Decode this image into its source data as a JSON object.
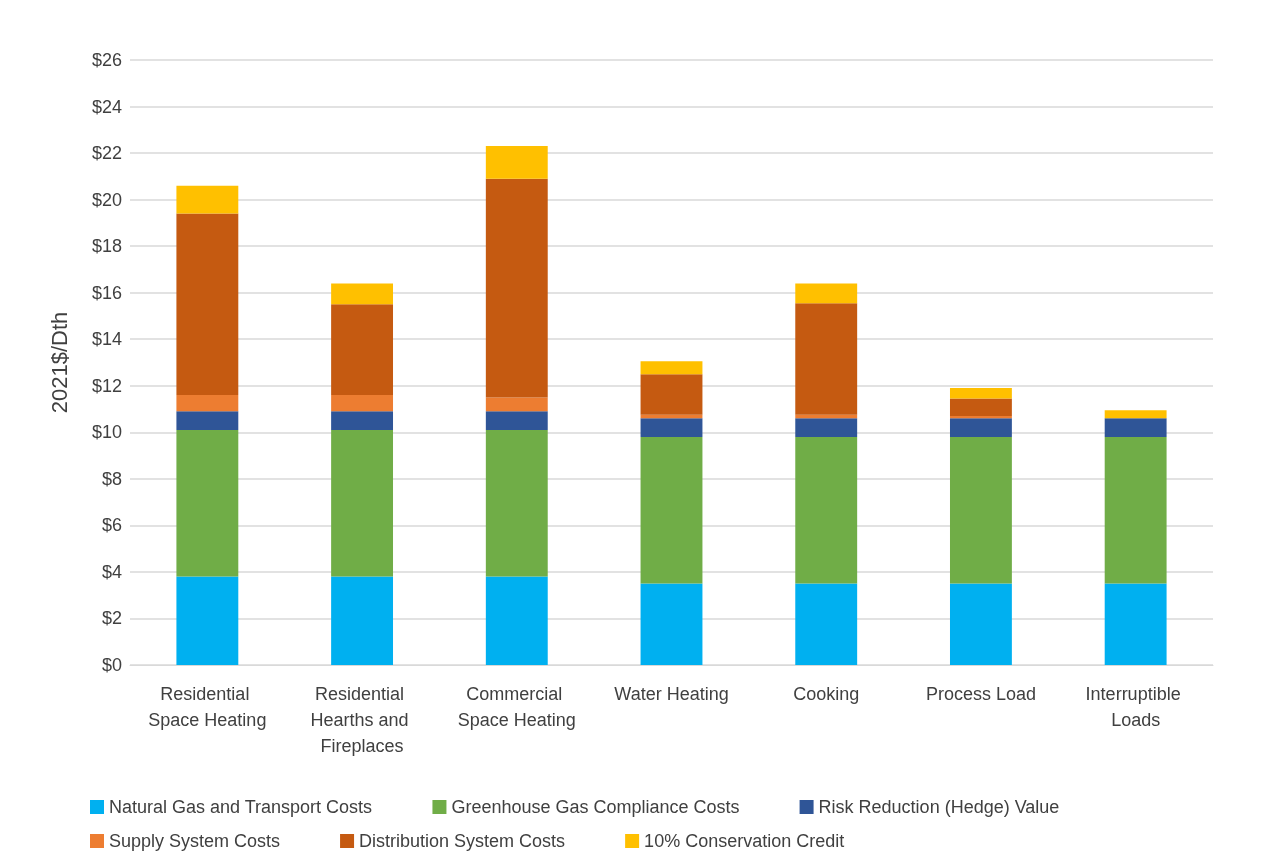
{
  "chart_data": {
    "type": "bar",
    "stacked": true,
    "ylabel": "2021$/Dth",
    "categories": [
      "Residential Space Heating",
      "Residential Hearths and Fireplaces",
      "Commercial Space Heating",
      "Water Heating",
      "Cooking",
      "Process Load",
      "Interruptible Loads"
    ],
    "series": [
      {
        "name": "Natural Gas and Transport Costs",
        "color": "#00b0f0",
        "values": [
          3.8,
          3.8,
          3.8,
          3.5,
          3.5,
          3.5,
          3.5
        ]
      },
      {
        "name": "Greenhouse Gas Compliance Costs",
        "color": "#70ad47",
        "values": [
          6.3,
          6.3,
          6.3,
          6.3,
          6.3,
          6.3,
          6.3
        ]
      },
      {
        "name": "Risk Reduction (Hedge) Value",
        "color": "#2f5597",
        "values": [
          0.8,
          0.8,
          0.8,
          0.8,
          0.8,
          0.8,
          0.8
        ]
      },
      {
        "name": "Supply System Costs",
        "color": "#ed7d31",
        "values": [
          0.7,
          0.7,
          0.6,
          0.15,
          0.15,
          0.1,
          0
        ]
      },
      {
        "name": "Distribution System Costs",
        "color": "#c55a11",
        "values": [
          7.8,
          3.9,
          9.4,
          1.75,
          4.8,
          0.75,
          0
        ]
      },
      {
        "name": "10% Conservation Credit",
        "color": "#ffc000",
        "values": [
          1.2,
          0.9,
          1.4,
          0.55,
          0.85,
          0.45,
          0.35
        ]
      }
    ],
    "ylim": [
      0,
      26
    ],
    "yticks": [
      {
        "value": 0,
        "label": "$0"
      },
      {
        "value": 2,
        "label": "$2"
      },
      {
        "value": 4,
        "label": "$4"
      },
      {
        "value": 6,
        "label": "$6"
      },
      {
        "value": 8,
        "label": "$8"
      },
      {
        "value": 10,
        "label": "$10"
      },
      {
        "value": 12,
        "label": "$12"
      },
      {
        "value": 14,
        "label": "$14"
      },
      {
        "value": 16,
        "label": "$16"
      },
      {
        "value": 18,
        "label": "$18"
      },
      {
        "value": 20,
        "label": "$20"
      },
      {
        "value": 22,
        "label": "$22"
      },
      {
        "value": 24,
        "label": "$24"
      },
      {
        "value": 26,
        "label": "$26"
      }
    ],
    "grid": "y",
    "legend": "bottom"
  }
}
